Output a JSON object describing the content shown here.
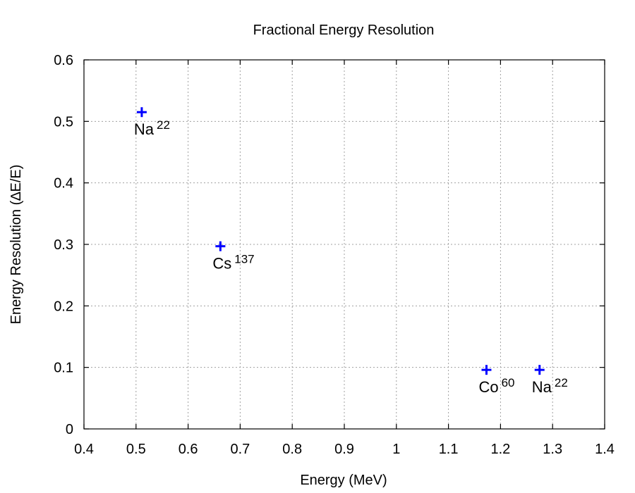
{
  "chart_data": {
    "type": "scatter",
    "title": "Fractional Energy Resolution",
    "xlabel": "Energy (MeV)",
    "ylabel": "Energy Resolution (∆E/E)",
    "xlim": [
      0.4,
      1.4
    ],
    "ylim": [
      0,
      0.6
    ],
    "xticks": [
      0.4,
      0.5,
      0.6,
      0.7,
      0.8,
      0.9,
      1,
      1.1,
      1.2,
      1.3,
      1.4
    ],
    "xtick_labels": [
      "0.4",
      "0.5",
      "0.6",
      "0.7",
      "0.8",
      "0.9",
      "1",
      "1.1",
      "1.2",
      "1.3",
      "1.4"
    ],
    "yticks": [
      0,
      0.1,
      0.2,
      0.3,
      0.4,
      0.5,
      0.6
    ],
    "ytick_labels": [
      "0",
      "0.1",
      "0.2",
      "0.3",
      "0.4",
      "0.5",
      "0.6"
    ],
    "grid": true,
    "marker": "+",
    "marker_color": "#0000ff",
    "points": [
      {
        "x": 0.511,
        "y": 0.515,
        "label": "Na",
        "sup": "22"
      },
      {
        "x": 0.662,
        "y": 0.297,
        "label": "Cs",
        "sup": "137"
      },
      {
        "x": 1.173,
        "y": 0.096,
        "label": "Co",
        "sup": "60"
      },
      {
        "x": 1.275,
        "y": 0.096,
        "label": "Na",
        "sup": "22"
      }
    ]
  }
}
